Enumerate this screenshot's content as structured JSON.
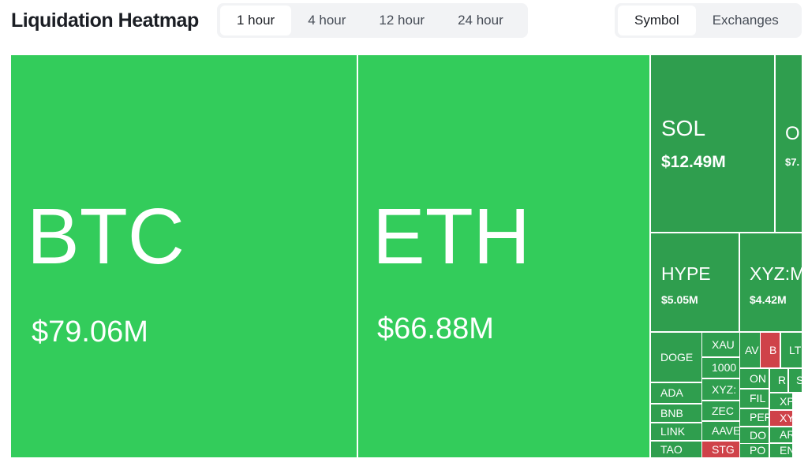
{
  "header": {
    "title": "Liquidation Heatmap"
  },
  "time_tabs": [
    "1 hour",
    "4 hour",
    "12 hour",
    "24 hour"
  ],
  "view_tabs": [
    "Symbol",
    "Exchanges"
  ],
  "cells": [
    {
      "label": "BTC",
      "value": "$79.06M"
    },
    {
      "label": "ETH",
      "value": "$66.88M"
    },
    {
      "label": "SOL",
      "value": "$12.49M"
    },
    {
      "label": "O",
      "value": "$7."
    },
    {
      "label": "HYPE",
      "value": "$5.05M"
    },
    {
      "label": "XYZ:M",
      "value": "$4.42M"
    },
    {
      "label": "DOGE"
    },
    {
      "label": "XAU"
    },
    {
      "label": "1000"
    },
    {
      "label": "XYZ:"
    },
    {
      "label": "ADA"
    },
    {
      "label": "BNB"
    },
    {
      "label": "ZEC"
    },
    {
      "label": "LINK"
    },
    {
      "label": "AAVE"
    },
    {
      "label": "TAO"
    },
    {
      "label": "STG"
    },
    {
      "label": "AV"
    },
    {
      "label": "B"
    },
    {
      "label": "LT"
    },
    {
      "label": "ON"
    },
    {
      "label": "R"
    },
    {
      "label": "S"
    },
    {
      "label": "FIL"
    },
    {
      "label": "XP"
    },
    {
      "label": "PEF"
    },
    {
      "label": "XY"
    },
    {
      "label": "DO"
    },
    {
      "label": "AR"
    },
    {
      "label": "PO"
    },
    {
      "label": "EN"
    }
  ]
}
